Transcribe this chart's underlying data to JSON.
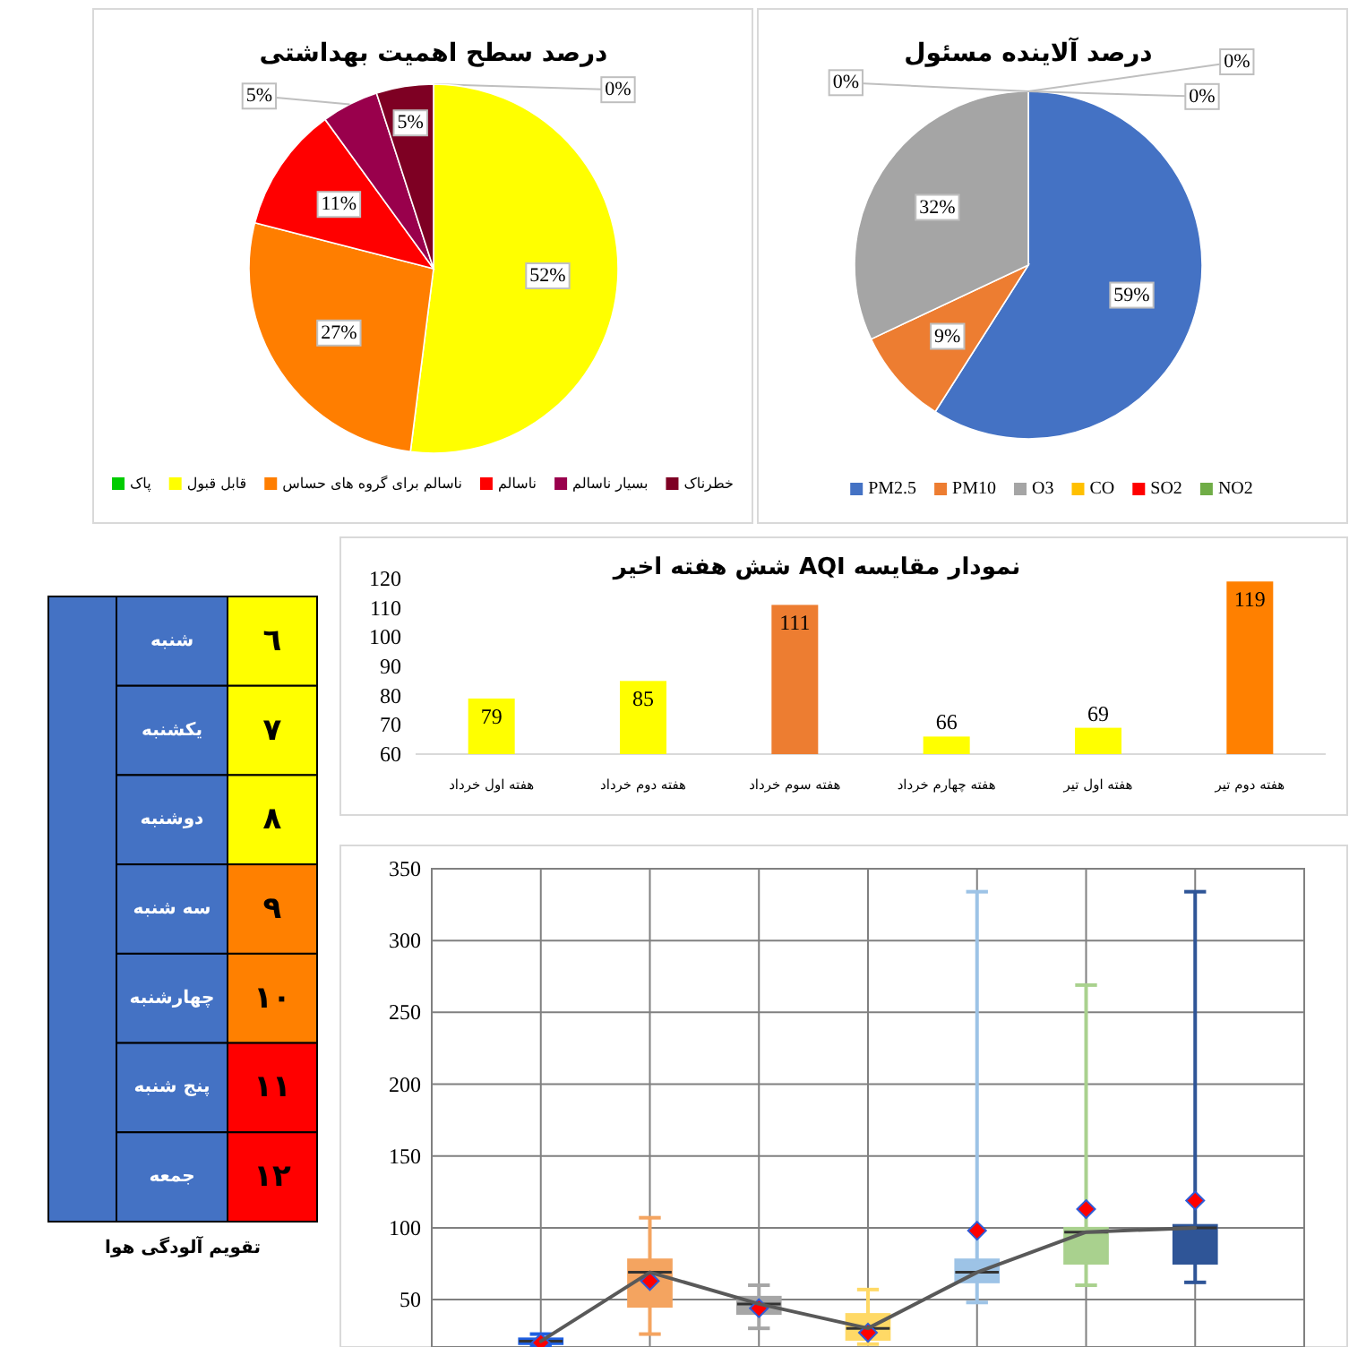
{
  "chart_data": [
    {
      "type": "pie",
      "title": "درصد سطح اهمیت بهداشتی",
      "categories": [
        "پاک",
        "قابل قبول",
        "ناسالم برای گروه های حساس",
        "ناسالم",
        "بسیار ناسالم",
        "خطرناک"
      ],
      "values": [
        0,
        52,
        27,
        11,
        5,
        5
      ],
      "value_labels": [
        "0%",
        "52%",
        "27%",
        "11%",
        "5%",
        "5%"
      ],
      "colors": [
        "#00cc00",
        "#ffff00",
        "#ff7e00",
        "#ff0000",
        "#99004c",
        "#7e0023"
      ],
      "legend": "bottom"
    },
    {
      "type": "pie",
      "title": "درصد آلاینده مسئول",
      "categories": [
        "PM2.5",
        "PM10",
        "O3",
        "CO",
        "SO2",
        "NO2"
      ],
      "values": [
        59,
        9,
        32,
        0,
        0,
        0
      ],
      "value_labels": [
        "59%",
        "9%",
        "32%",
        "0%",
        "0%",
        "0%"
      ],
      "colors": [
        "#4472c4",
        "#ed7d31",
        "#a5a5a5",
        "#ffc000",
        "#ff0000",
        "#70ad47"
      ],
      "legend": "bottom"
    },
    {
      "type": "heatmap",
      "title": "تقویم آلودگی هوا",
      "categories": [
        null
      ],
      "y_categories": [
        "شنبه",
        "یکشنبه",
        "دوشنبه",
        "سه شنبه",
        "چهارشنبه",
        "پنج شنبه",
        "جمعه"
      ],
      "cells": [
        [
          6
        ],
        [
          7
        ],
        [
          8
        ],
        [
          9
        ],
        [
          10
        ],
        [
          11
        ],
        [
          12
        ]
      ],
      "cell_labels": [
        [
          "٦"
        ],
        [
          "٧"
        ],
        [
          "٨"
        ],
        [
          "٩"
        ],
        [
          "١٠"
        ],
        [
          "١١"
        ],
        [
          "١٢"
        ]
      ],
      "colors": [
        "#ffff00",
        "#ffff00",
        "#ffff00",
        "#ff8000",
        "#ff8000",
        "#ff0000",
        "#ff0000"
      ]
    },
    {
      "type": "bar",
      "title": "نمودار مقایسه AQI شش هفته اخیر",
      "categories": [
        "هفته اول خرداد",
        "هفته دوم خرداد",
        "هفته سوم خرداد",
        "هفته چهارم خرداد",
        "هفته اول تیر",
        "هفته دوم تیر"
      ],
      "values": [
        79,
        85,
        111,
        66,
        69,
        119
      ],
      "colors": [
        "#ffff00",
        "#ffff00",
        "#ed7d31",
        "#ffff00",
        "#ffff00",
        "#ff8000"
      ],
      "ylim": [
        60,
        120
      ],
      "yticks": [
        60,
        70,
        80,
        90,
        100,
        110,
        120
      ],
      "data_labels": true
    },
    {
      "type": "box",
      "categories": [
        null,
        null,
        null,
        null,
        null,
        null,
        null
      ],
      "ylim": [
        17,
        350
      ],
      "yticks": [
        50,
        100,
        150,
        200,
        250,
        300,
        350
      ],
      "grid": true,
      "colors": [
        "#1f5fe0",
        "#f4a460",
        "#a6a6a6",
        "#ffd966",
        "#9dc3e6",
        "#a9d18e",
        "#2f5597"
      ],
      "boxes": [
        {
          "low": 18,
          "q1": 19,
          "median": 21,
          "q3": 23,
          "high": 26,
          "mean": 20
        },
        {
          "low": 26,
          "q1": 45,
          "median": 69,
          "q3": 78,
          "high": 107,
          "mean": 63
        },
        {
          "low": 30,
          "q1": 40,
          "median": 47,
          "q3": 52,
          "high": 60,
          "mean": 44
        },
        {
          "low": 19,
          "q1": 22,
          "median": 30,
          "q3": 40,
          "high": 57,
          "mean": 27
        },
        {
          "low": 48,
          "q1": 62,
          "median": 69,
          "q3": 78,
          "high": 334,
          "mean": 98
        },
        {
          "low": 60,
          "q1": 75,
          "median": 97,
          "q3": 100,
          "high": 269,
          "mean": 113
        },
        {
          "low": 62,
          "q1": 75,
          "median": 100,
          "q3": 102,
          "high": 334,
          "mean": 119
        }
      ],
      "series": [
        {
          "type": "line",
          "color": "#595959",
          "values": [
            21,
            69,
            47,
            30,
            69,
            97,
            100
          ]
        }
      ]
    }
  ]
}
